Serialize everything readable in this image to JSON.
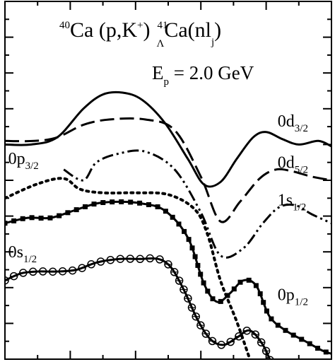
{
  "chart_data": {
    "type": "line",
    "title": {
      "target_sup": "40",
      "target": "Ca (p,K",
      "kaon_sup": "+",
      "paren_close": ")",
      "hyper_sup": "41",
      "hyper_sub": "Λ",
      "hyper": "Ca(nl",
      "j_sub": "j",
      "close": ")"
    },
    "energy": {
      "lhs": "E",
      "lhs_sub": "p",
      "rhs": " = 2.0 GeV"
    },
    "xlabel": "",
    "ylabel": "",
    "x_range": [
      0,
      10
    ],
    "y_range": [
      0,
      10
    ],
    "grid": false,
    "series": [
      {
        "name": "0d3/2",
        "label_main": "0d",
        "label_sub": "3/2",
        "dash": "none",
        "marker": "none",
        "points": [
          [
            0.0,
            6.0
          ],
          [
            0.8,
            6.0
          ],
          [
            1.6,
            6.2
          ],
          [
            2.4,
            7.0
          ],
          [
            3.0,
            7.4
          ],
          [
            3.6,
            7.45
          ],
          [
            4.2,
            7.25
          ],
          [
            4.9,
            6.6
          ],
          [
            5.6,
            5.6
          ],
          [
            6.1,
            4.88
          ],
          [
            6.6,
            4.95
          ],
          [
            7.1,
            5.6
          ],
          [
            7.6,
            6.2
          ],
          [
            8.0,
            6.35
          ],
          [
            8.5,
            6.15
          ],
          [
            9.0,
            6.0
          ],
          [
            9.6,
            6.1
          ],
          [
            10.0,
            5.95
          ]
        ],
        "label_pos": [
          8.35,
          6.5
        ]
      },
      {
        "name": "0d5/2",
        "label_main": "0d",
        "label_sub": "5/2",
        "dash": "20,8",
        "marker": "none",
        "points": [
          [
            0.0,
            6.1
          ],
          [
            0.9,
            6.1
          ],
          [
            1.6,
            6.2
          ],
          [
            2.4,
            6.55
          ],
          [
            3.2,
            6.7
          ],
          [
            4.3,
            6.7
          ],
          [
            5.2,
            6.4
          ],
          [
            6.0,
            5.1
          ],
          [
            6.6,
            3.85
          ],
          [
            7.2,
            4.4
          ],
          [
            7.8,
            5.05
          ],
          [
            8.3,
            5.3
          ],
          [
            8.8,
            5.25
          ],
          [
            9.4,
            5.1
          ],
          [
            10.0,
            5.0
          ]
        ],
        "label_pos": [
          8.35,
          5.35
        ]
      },
      {
        "name": "1s1/2",
        "label_main": "1s",
        "label_sub": "1/2",
        "dash": "16,5,3,5,3,5",
        "marker": "none",
        "points": [
          [
            1.8,
            5.3
          ],
          [
            2.4,
            5.0
          ],
          [
            2.8,
            5.5
          ],
          [
            3.5,
            5.75
          ],
          [
            4.3,
            5.8
          ],
          [
            5.2,
            5.3
          ],
          [
            6.0,
            4.1
          ],
          [
            6.6,
            2.9
          ],
          [
            7.3,
            3.1
          ],
          [
            7.9,
            3.8
          ],
          [
            8.4,
            4.25
          ],
          [
            8.9,
            4.3
          ],
          [
            9.4,
            4.05
          ],
          [
            10.0,
            3.8
          ]
        ],
        "label_pos": [
          8.35,
          4.3
        ]
      },
      {
        "name": "0p3/2",
        "label_main": "0p",
        "label_sub": "3/2",
        "dash": "3,6",
        "marker": "none",
        "points": [
          [
            0.0,
            4.5
          ],
          [
            1.0,
            4.9
          ],
          [
            1.8,
            5.05
          ],
          [
            2.3,
            4.75
          ],
          [
            3.0,
            4.65
          ],
          [
            4.0,
            4.65
          ],
          [
            5.0,
            4.6
          ],
          [
            5.8,
            4.2
          ],
          [
            6.2,
            3.5
          ],
          [
            6.6,
            2.2
          ],
          [
            7.1,
            1.05
          ],
          [
            7.5,
            0.0
          ]
        ],
        "label_pos": [
          0.1,
          5.45
        ]
      },
      {
        "name": "0p1/2",
        "label_main": "0p",
        "label_sub": "1/2",
        "dash": "none",
        "marker": "square",
        "points": [
          [
            0.0,
            3.8
          ],
          [
            0.7,
            3.95
          ],
          [
            1.4,
            3.95
          ],
          [
            2.1,
            4.15
          ],
          [
            2.8,
            4.35
          ],
          [
            3.5,
            4.4
          ],
          [
            4.2,
            4.35
          ],
          [
            4.9,
            4.15
          ],
          [
            5.6,
            3.4
          ],
          [
            6.1,
            2.1
          ],
          [
            6.5,
            1.6
          ],
          [
            6.9,
            1.85
          ],
          [
            7.3,
            2.2
          ],
          [
            7.7,
            2.05
          ],
          [
            8.1,
            1.2
          ],
          [
            8.6,
            0.8
          ],
          [
            9.2,
            0.5
          ],
          [
            9.7,
            0.25
          ],
          [
            10.0,
            0.15
          ]
        ],
        "label_pos": [
          8.35,
          1.65
        ]
      },
      {
        "name": "0s1/2",
        "label_main": "0s",
        "label_sub": "1/2",
        "dash": "none",
        "marker": "circle",
        "points": [
          [
            0.0,
            2.2
          ],
          [
            0.5,
            2.4
          ],
          [
            1.0,
            2.45
          ],
          [
            1.6,
            2.45
          ],
          [
            2.2,
            2.5
          ],
          [
            2.8,
            2.7
          ],
          [
            3.5,
            2.8
          ],
          [
            4.1,
            2.8
          ],
          [
            4.7,
            2.8
          ],
          [
            5.1,
            2.55
          ],
          [
            5.5,
            1.9
          ],
          [
            5.9,
            1.1
          ],
          [
            6.3,
            0.55
          ],
          [
            6.7,
            0.4
          ],
          [
            7.1,
            0.6
          ],
          [
            7.5,
            0.8
          ],
          [
            7.9,
            0.4
          ],
          [
            8.2,
            -0.2
          ]
        ],
        "label_pos": [
          0.1,
          2.85
        ]
      }
    ]
  }
}
